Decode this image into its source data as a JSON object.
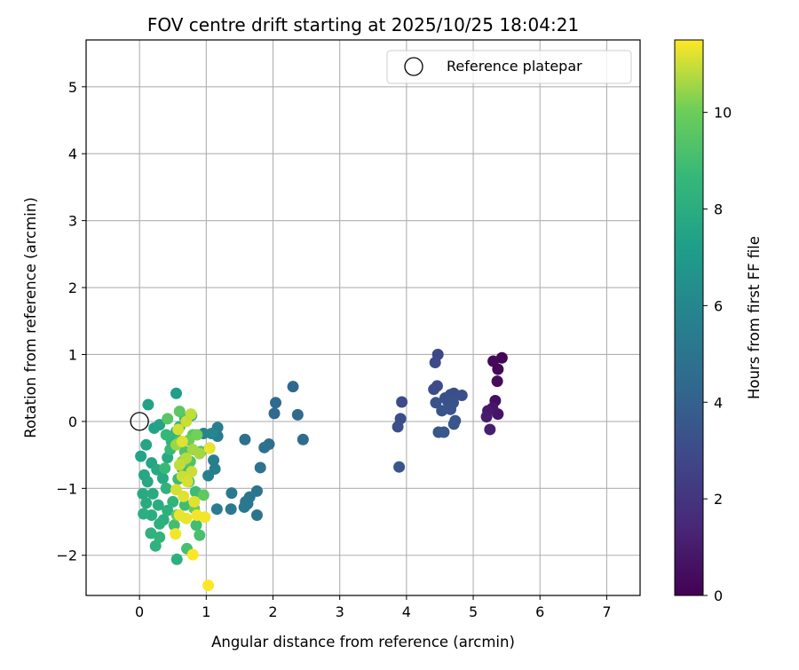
{
  "chart_data": {
    "type": "scatter",
    "title": "FOV centre drift starting at 2025/10/25 18:04:21",
    "xlabel": "Angular distance from reference (arcmin)",
    "ylabel": "Rotation from reference (arcmin)",
    "xlim": [
      -0.8,
      7.5
    ],
    "ylim": [
      -2.6,
      5.7
    ],
    "xticks": [
      0,
      1,
      2,
      3,
      4,
      5,
      6,
      7
    ],
    "yticks": [
      -2,
      -1,
      0,
      1,
      2,
      3,
      4,
      5
    ],
    "grid": true,
    "legend": {
      "placement": "top-right",
      "entries": [
        "Reference platepar"
      ]
    },
    "reference_point": {
      "x": 0,
      "y": 0
    },
    "colorbar": {
      "label": "Hours from first FF file",
      "colormap": "viridis",
      "range": [
        0,
        11.5
      ],
      "ticks": [
        0,
        2,
        4,
        6,
        8,
        10
      ]
    },
    "points": [
      [
        5.43,
        0.95,
        0.1
      ],
      [
        5.37,
        0.78,
        0.2
      ],
      [
        5.3,
        0.9,
        0.3
      ],
      [
        5.36,
        0.6,
        0.4
      ],
      [
        5.33,
        0.31,
        0.5
      ],
      [
        5.37,
        0.11,
        0.7
      ],
      [
        5.29,
        0.2,
        0.8
      ],
      [
        5.22,
        0.16,
        0.9
      ],
      [
        5.2,
        0.07,
        1.0
      ],
      [
        5.25,
        -0.12,
        1.1
      ],
      [
        4.47,
        1.0,
        2.8
      ],
      [
        4.43,
        0.88,
        2.9
      ],
      [
        4.46,
        0.53,
        3.0
      ],
      [
        4.41,
        0.48,
        3.0
      ],
      [
        4.66,
        0.4,
        3.1
      ],
      [
        4.71,
        0.42,
        3.1
      ],
      [
        4.83,
        0.39,
        3.2
      ],
      [
        4.58,
        0.35,
        3.2
      ],
      [
        4.62,
        0.3,
        3.3
      ],
      [
        4.7,
        0.28,
        3.3
      ],
      [
        4.44,
        0.28,
        3.4
      ],
      [
        4.53,
        0.16,
        3.4
      ],
      [
        4.66,
        0.18,
        3.4
      ],
      [
        4.73,
        0.01,
        3.5
      ],
      [
        4.71,
        -0.04,
        3.5
      ],
      [
        4.48,
        -0.16,
        3.5
      ],
      [
        4.56,
        -0.16,
        3.6
      ],
      [
        3.93,
        0.29,
        3.0
      ],
      [
        3.91,
        0.04,
        3.1
      ],
      [
        3.87,
        -0.08,
        3.2
      ],
      [
        3.89,
        -0.68,
        3.5
      ],
      [
        2.3,
        0.52,
        4.3
      ],
      [
        2.04,
        0.28,
        4.4
      ],
      [
        2.02,
        0.12,
        4.4
      ],
      [
        2.37,
        0.1,
        4.5
      ],
      [
        2.45,
        -0.27,
        4.6
      ],
      [
        1.94,
        -0.34,
        4.7
      ],
      [
        1.87,
        -0.39,
        4.8
      ],
      [
        1.58,
        -0.27,
        4.8
      ],
      [
        1.81,
        -0.69,
        4.9
      ],
      [
        1.76,
        -1.04,
        5.0
      ],
      [
        1.76,
        -1.4,
        5.0
      ],
      [
        1.65,
        -1.13,
        5.1
      ],
      [
        1.59,
        -1.2,
        5.1
      ],
      [
        1.57,
        -1.28,
        5.2
      ],
      [
        1.62,
        -1.23,
        5.2
      ],
      [
        1.38,
        -1.07,
        5.3
      ],
      [
        1.37,
        -1.31,
        5.3
      ],
      [
        1.16,
        -1.31,
        5.4
      ],
      [
        1.17,
        -0.09,
        5.5
      ],
      [
        1.17,
        -0.22,
        5.5
      ],
      [
        1.11,
        -0.58,
        5.6
      ],
      [
        1.13,
        -0.71,
        5.6
      ],
      [
        1.03,
        -0.81,
        5.7
      ],
      [
        1.05,
        -0.4,
        5.8
      ],
      [
        0.96,
        -0.18,
        5.9
      ],
      [
        1.08,
        -0.18,
        6.0
      ],
      [
        0.55,
        0.42,
        7.2
      ],
      [
        0.13,
        0.25,
        7.4
      ],
      [
        0.22,
        -0.1,
        7.4
      ],
      [
        0.3,
        -0.05,
        7.5
      ],
      [
        0.02,
        -0.52,
        7.5
      ],
      [
        0.1,
        -0.35,
        7.6
      ],
      [
        0.18,
        -0.62,
        7.6
      ],
      [
        0.07,
        -0.8,
        7.7
      ],
      [
        0.12,
        -0.9,
        7.7
      ],
      [
        0.26,
        -0.72,
        7.8
      ],
      [
        0.35,
        -0.85,
        7.8
      ],
      [
        0.42,
        -0.54,
        7.9
      ],
      [
        0.05,
        -1.08,
        7.8
      ],
      [
        0.1,
        -1.22,
        7.9
      ],
      [
        0.2,
        -1.08,
        7.9
      ],
      [
        0.28,
        -1.25,
        8.0
      ],
      [
        0.18,
        -1.4,
        8.0
      ],
      [
        0.06,
        -1.38,
        8.1
      ],
      [
        0.36,
        -1.47,
        8.1
      ],
      [
        0.42,
        -1.33,
        8.2
      ],
      [
        0.3,
        -1.53,
        8.2
      ],
      [
        0.17,
        -1.67,
        8.3
      ],
      [
        0.24,
        -1.86,
        8.3
      ],
      [
        0.3,
        -1.73,
        8.4
      ],
      [
        0.56,
        -2.06,
        8.2
      ],
      [
        0.4,
        -1.0,
        8.3
      ],
      [
        0.5,
        -1.2,
        8.4
      ],
      [
        0.48,
        -0.3,
        8.4
      ],
      [
        0.55,
        -0.15,
        8.5
      ],
      [
        0.6,
        -0.08,
        8.5
      ],
      [
        0.68,
        0.05,
        8.6
      ],
      [
        0.78,
        0.09,
        8.6
      ],
      [
        0.4,
        -0.2,
        8.6
      ],
      [
        0.46,
        -0.42,
        8.7
      ],
      [
        0.38,
        -0.7,
        8.7
      ],
      [
        0.58,
        -0.86,
        8.8
      ],
      [
        0.64,
        -0.7,
        8.8
      ],
      [
        0.74,
        -0.9,
        8.8
      ],
      [
        0.84,
        -1.05,
        8.9
      ],
      [
        0.68,
        -1.25,
        8.9
      ],
      [
        0.52,
        -1.55,
        9.0
      ],
      [
        0.85,
        -1.55,
        9.0
      ],
      [
        0.9,
        -1.7,
        9.1
      ],
      [
        0.71,
        -1.9,
        9.1
      ],
      [
        0.6,
        -0.3,
        9.2
      ],
      [
        0.68,
        -0.45,
        9.3
      ],
      [
        0.76,
        -0.6,
        9.3
      ],
      [
        0.92,
        -0.45,
        9.4
      ],
      [
        0.42,
        0.04,
        9.5
      ],
      [
        0.6,
        0.15,
        9.6
      ],
      [
        0.8,
        -0.2,
        9.6
      ],
      [
        0.96,
        -1.1,
        9.7
      ],
      [
        0.56,
        -1.4,
        9.8
      ],
      [
        0.82,
        -1.3,
        9.9
      ],
      [
        0.74,
        -0.28,
        10.0
      ],
      [
        0.86,
        -0.2,
        10.1
      ],
      [
        0.64,
        -0.6,
        10.3
      ],
      [
        0.55,
        -0.35,
        10.5
      ],
      [
        0.8,
        -0.42,
        10.6
      ],
      [
        0.9,
        -0.48,
        10.6
      ],
      [
        0.7,
        -0.55,
        10.8
      ],
      [
        0.6,
        -0.65,
        10.9
      ],
      [
        0.78,
        -0.75,
        11.0
      ],
      [
        0.64,
        -0.82,
        11.0
      ],
      [
        0.72,
        -0.9,
        11.1
      ],
      [
        0.55,
        -1.02,
        11.1
      ],
      [
        0.66,
        -1.12,
        11.2
      ],
      [
        0.82,
        -1.2,
        11.2
      ],
      [
        0.6,
        -1.4,
        11.3
      ],
      [
        0.7,
        -1.45,
        11.3
      ],
      [
        0.86,
        -1.4,
        11.4
      ],
      [
        0.54,
        -1.68,
        11.4
      ],
      [
        0.98,
        -1.43,
        11.4
      ],
      [
        0.8,
        -1.99,
        11.5
      ],
      [
        1.03,
        -2.45,
        11.5
      ],
      [
        1.05,
        -0.4,
        11.3
      ],
      [
        0.64,
        -0.3,
        11.2
      ],
      [
        0.58,
        -0.12,
        11.1
      ],
      [
        0.7,
        0.0,
        11.0
      ],
      [
        0.77,
        0.11,
        10.9
      ]
    ]
  }
}
